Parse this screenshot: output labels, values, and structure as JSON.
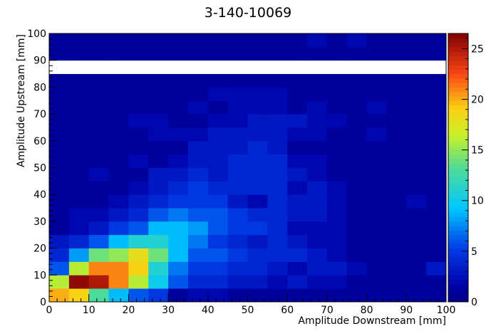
{
  "chart_data": {
    "type": "heatmap",
    "title": "3-140-10069",
    "xlabel": "Amplitude Downstream [mm]",
    "ylabel": "Amplitude Upstream [mm]",
    "xlim": [
      0,
      100
    ],
    "ylim": [
      0,
      100
    ],
    "x_ticks": [
      0,
      10,
      20,
      30,
      40,
      50,
      60,
      70,
      80,
      90,
      100
    ],
    "y_ticks": [
      0,
      10,
      20,
      30,
      40,
      50,
      60,
      70,
      80,
      90,
      100
    ],
    "z_range": [
      0,
      26.5
    ],
    "z_ticks": [
      0,
      5,
      10,
      15,
      20,
      25
    ],
    "bin_size": 5,
    "empty_band_y": [
      85,
      90
    ],
    "colormap": "kBird (ROOT)",
    "bins_note": "rows ordered from y=0-5 upward; each row lists 20 x-bins of width 5",
    "rows": [
      [
        20,
        19,
        13,
        9,
        6,
        5,
        1,
        2,
        2,
        1,
        1,
        1,
        1,
        1,
        1,
        1,
        1,
        1,
        1,
        1
      ],
      [
        16,
        26,
        25,
        21,
        16,
        10,
        6,
        4,
        4,
        3,
        3,
        2,
        3,
        2,
        2,
        1,
        1,
        1,
        1,
        1
      ],
      [
        6,
        16,
        21,
        21,
        19,
        11,
        7,
        5,
        5,
        4,
        4,
        3,
        2,
        3,
        3,
        2,
        1,
        1,
        1,
        3
      ],
      [
        4,
        8,
        14,
        15,
        18,
        14,
        9,
        6,
        6,
        5,
        4,
        4,
        4,
        3,
        2,
        1,
        1,
        1,
        1,
        1
      ],
      [
        3,
        4,
        6,
        9,
        11,
        11,
        9,
        7,
        5,
        4,
        3,
        4,
        3,
        2,
        2,
        1,
        1,
        1,
        1,
        1
      ],
      [
        1,
        2,
        3,
        5,
        6,
        9,
        9,
        8,
        6,
        5,
        5,
        4,
        2,
        2,
        2,
        1,
        1,
        1,
        1,
        1
      ],
      [
        1,
        2,
        2,
        3,
        4,
        6,
        7,
        6,
        6,
        5,
        4,
        4,
        3,
        3,
        2,
        1,
        1,
        1,
        1,
        1
      ],
      [
        1,
        1,
        1,
        2,
        3,
        4,
        5,
        5,
        5,
        3,
        2,
        4,
        3,
        3,
        2,
        1,
        1,
        1,
        2,
        1
      ],
      [
        1,
        1,
        1,
        1,
        2,
        3,
        4,
        5,
        4,
        4,
        4,
        4,
        2,
        3,
        2,
        1,
        1,
        1,
        1,
        1
      ],
      [
        1,
        1,
        2,
        1,
        1,
        3,
        3,
        4,
        3,
        4,
        4,
        4,
        3,
        2,
        1,
        1,
        1,
        1,
        1,
        1
      ],
      [
        1,
        1,
        1,
        1,
        2,
        1,
        2,
        3,
        3,
        4,
        4,
        4,
        2,
        2,
        1,
        1,
        1,
        1,
        1,
        1
      ],
      [
        1,
        1,
        1,
        1,
        1,
        1,
        1,
        3,
        3,
        3,
        4,
        3,
        1,
        1,
        1,
        1,
        1,
        1,
        1,
        1
      ],
      [
        1,
        1,
        1,
        1,
        1,
        2,
        2,
        2,
        3,
        3,
        3,
        3,
        2,
        2,
        1,
        1,
        2,
        1,
        1,
        1
      ],
      [
        1,
        1,
        1,
        1,
        2,
        2,
        1,
        1,
        2,
        2,
        3,
        3,
        3,
        2,
        2,
        1,
        1,
        1,
        1,
        1
      ],
      [
        1,
        1,
        1,
        1,
        1,
        1,
        1,
        2,
        1,
        2,
        2,
        2,
        1,
        2,
        1,
        1,
        2,
        1,
        1,
        1
      ],
      [
        1,
        1,
        1,
        1,
        1,
        1,
        1,
        1,
        2,
        2,
        2,
        2,
        1,
        1,
        1,
        1,
        1,
        1,
        1,
        1
      ],
      [
        1,
        1,
        1,
        1,
        1,
        1,
        1,
        1,
        1,
        1,
        1,
        1,
        1,
        1,
        1,
        1,
        1,
        1,
        1,
        1
      ],
      [
        0,
        0,
        0,
        0,
        0,
        0,
        0,
        0,
        0,
        0,
        0,
        0,
        0,
        0,
        0,
        0,
        0,
        0,
        0,
        0
      ],
      [
        1,
        1,
        1,
        1,
        1,
        1,
        1,
        1,
        1,
        1,
        1,
        1,
        1,
        1,
        1,
        1,
        1,
        1,
        1,
        1
      ],
      [
        1,
        1,
        1,
        1,
        1,
        1,
        1,
        1,
        1,
        1,
        1,
        1,
        1,
        2,
        1,
        2,
        1,
        1,
        1,
        1
      ]
    ]
  }
}
